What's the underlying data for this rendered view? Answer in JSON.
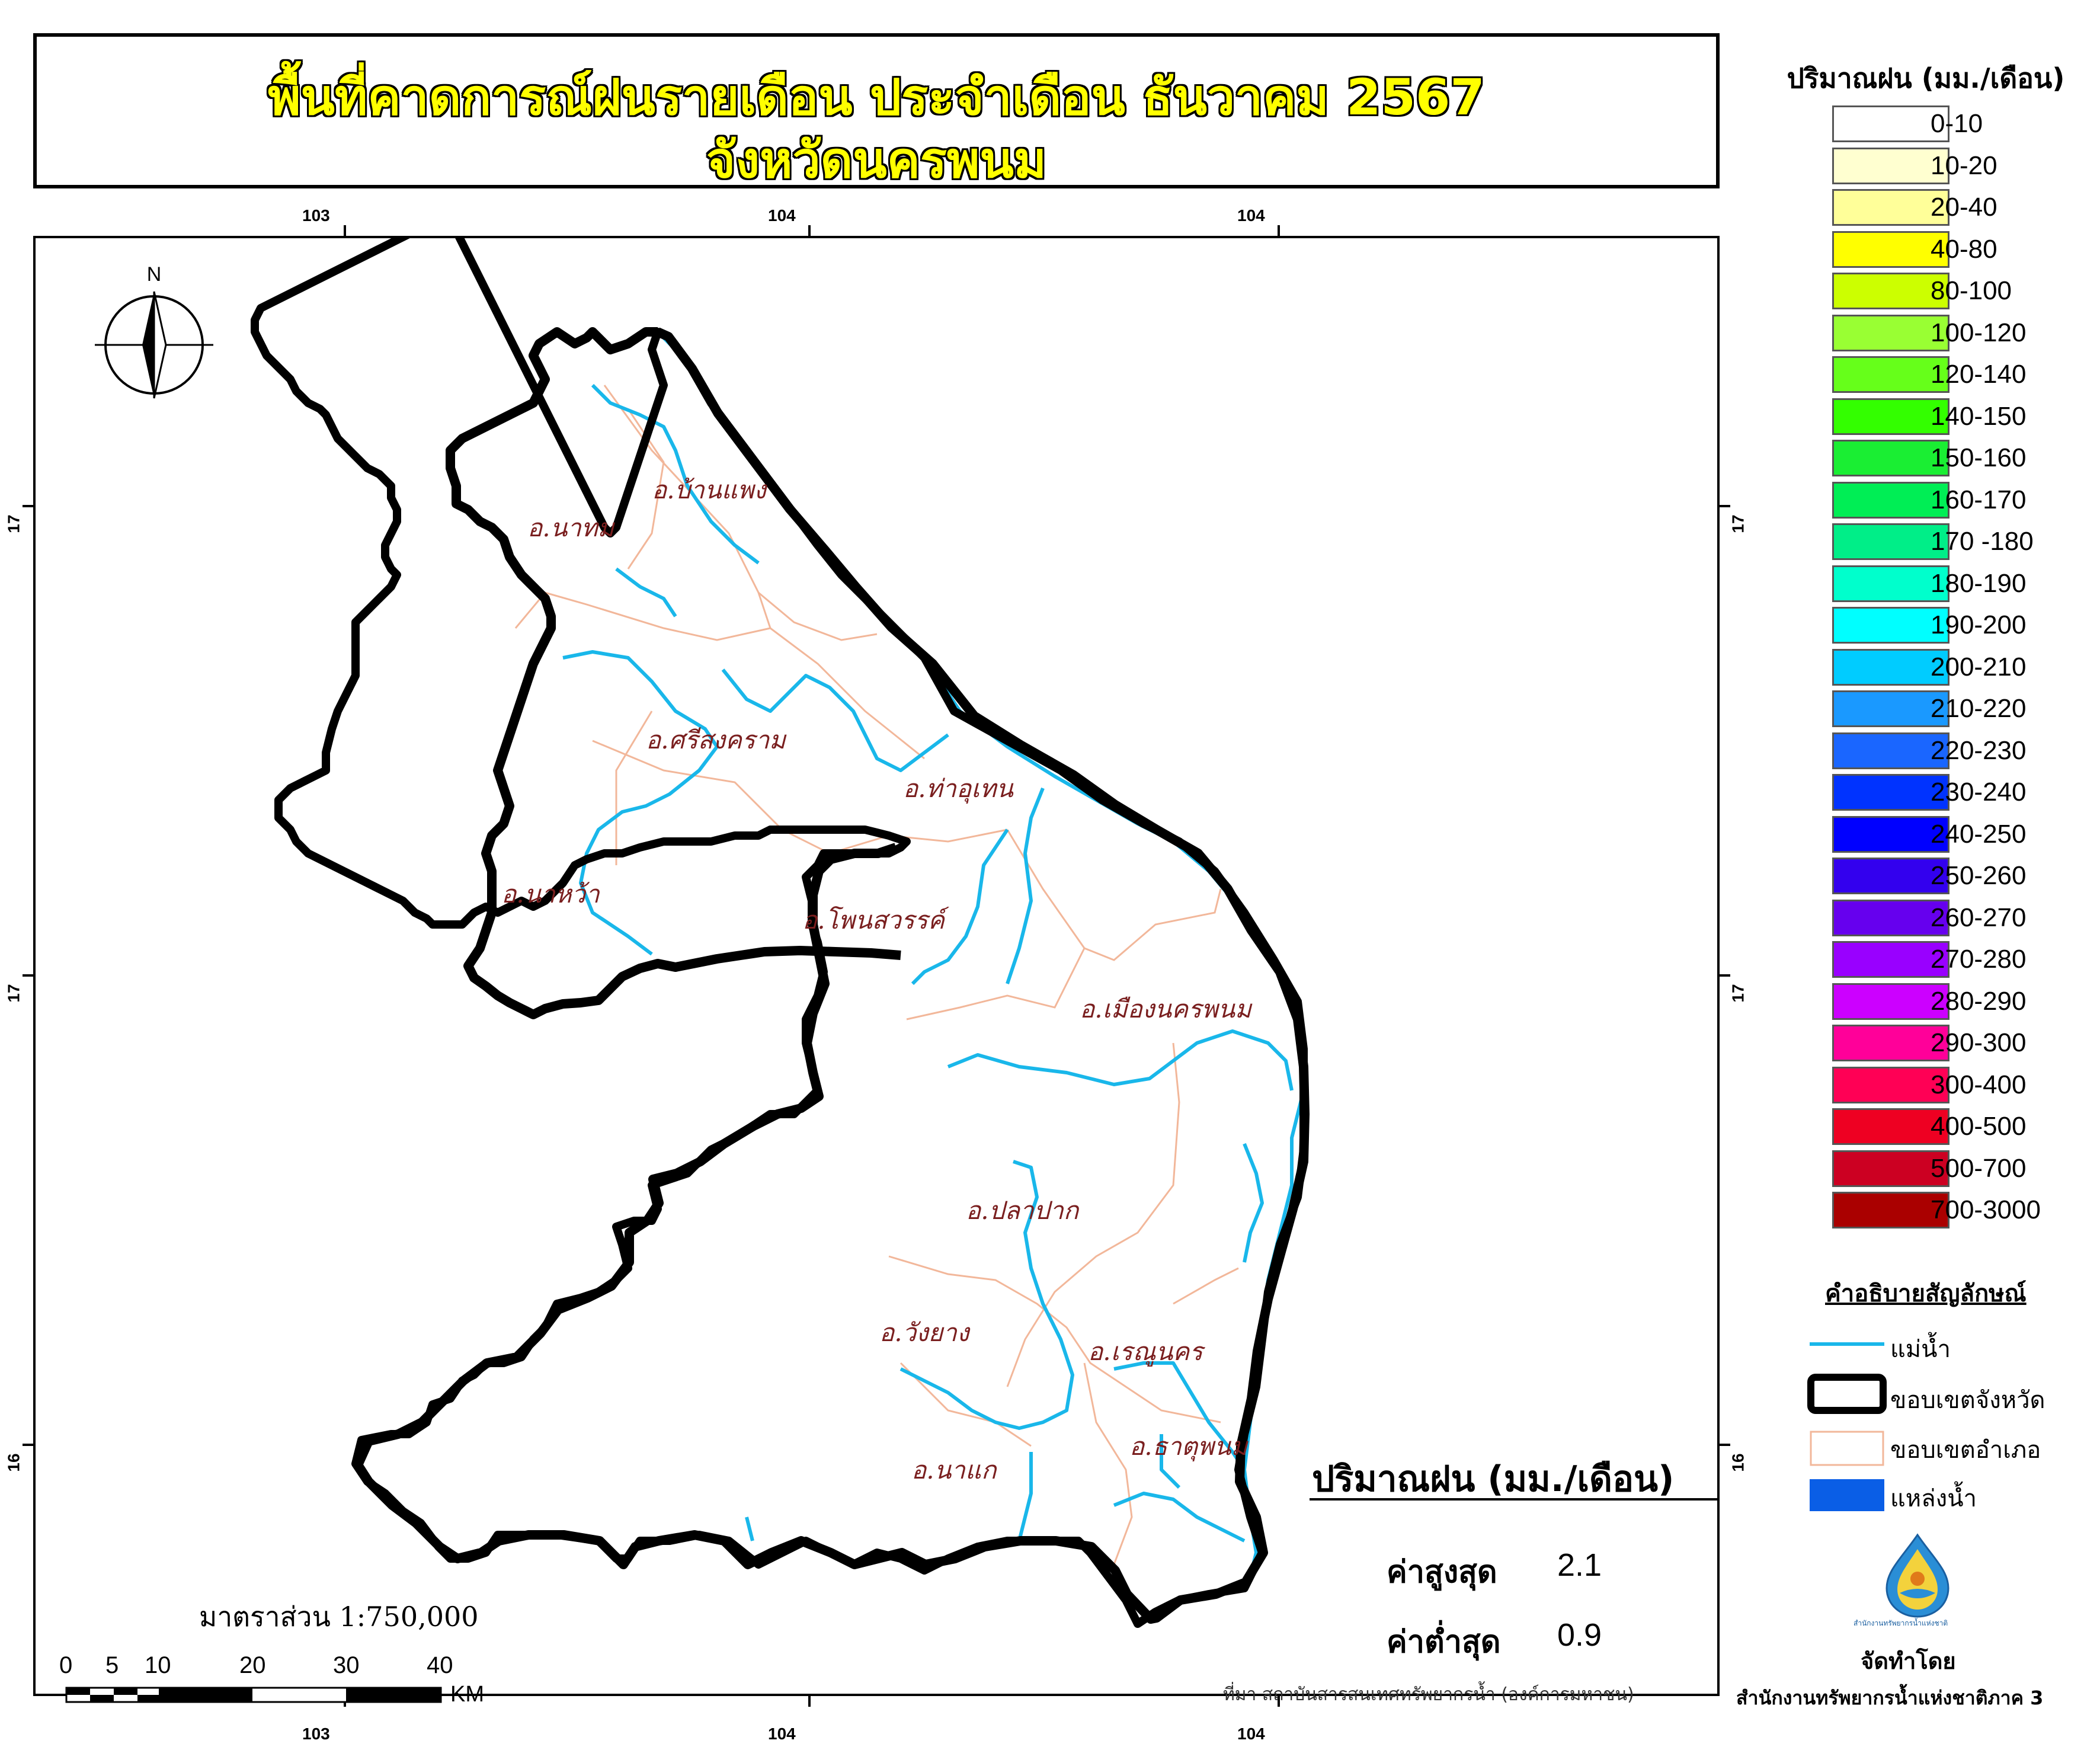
{
  "title": {
    "line1": "พื้นที่คาดการณ์ฝนรายเดือน ประจำเดือน ธันวาคม 2567",
    "line2": "จังหวัดนครพนม"
  },
  "grid_labels": {
    "top": [
      "103",
      "104",
      "104"
    ],
    "bottom": [
      "103",
      "104",
      "104"
    ],
    "left": [
      "17",
      "17",
      "16"
    ],
    "right": [
      "17",
      "17",
      "16"
    ]
  },
  "north_arrow": {
    "label": "N"
  },
  "districts": [
    {
      "id": "ban-phaeng",
      "name": "อ.บ้านแพง"
    },
    {
      "id": "na-thom",
      "name": "อ.นาทม"
    },
    {
      "id": "si-songkhram",
      "name": "อ.ศรีสงคราม"
    },
    {
      "id": "tha-uthen",
      "name": "อ.ท่าอุเทน"
    },
    {
      "id": "na-wa",
      "name": "อ.นาหว้า"
    },
    {
      "id": "phon-sawan",
      "name": "อ.โพนสวรรค์"
    },
    {
      "id": "mueang",
      "name": "อ.เมืองนครพนม"
    },
    {
      "id": "pla-pak",
      "name": "อ.ปลาปาก"
    },
    {
      "id": "wang-yang",
      "name": "อ.วังยาง"
    },
    {
      "id": "renu-nakhon",
      "name": "อ.เรณูนคร"
    },
    {
      "id": "that-phanom",
      "name": "อ.ธาตุพนม"
    },
    {
      "id": "na-kae",
      "name": "อ.นาแก"
    }
  ],
  "legend": {
    "title": "ปริมาณฝน (มม./เดือน)",
    "classes": [
      {
        "label": "0-10",
        "color": "#ffffff"
      },
      {
        "label": "10-20",
        "color": "#ffffd0"
      },
      {
        "label": "20-40",
        "color": "#ffff99"
      },
      {
        "label": "40-80",
        "color": "#ffff00"
      },
      {
        "label": "80-100",
        "color": "#ccff00"
      },
      {
        "label": "100-120",
        "color": "#99ff33"
      },
      {
        "label": "120-140",
        "color": "#66ff1a"
      },
      {
        "label": "140-150",
        "color": "#33ff00"
      },
      {
        "label": "150-160",
        "color": "#1aee33"
      },
      {
        "label": "160-170",
        "color": "#00ee55"
      },
      {
        "label": "170 -180",
        "color": "#00ee88"
      },
      {
        "label": "180-190",
        "color": "#00ffcc"
      },
      {
        "label": "190-200",
        "color": "#00ffff"
      },
      {
        "label": "200-210",
        "color": "#00ccff"
      },
      {
        "label": "210-220",
        "color": "#1a99ff"
      },
      {
        "label": "220-230",
        "color": "#1a66ff"
      },
      {
        "label": "230-240",
        "color": "#0033ff"
      },
      {
        "label": "240-250",
        "color": "#0000ff"
      },
      {
        "label": "250-260",
        "color": "#3300ee"
      },
      {
        "label": "260-270",
        "color": "#6600ee"
      },
      {
        "label": "270-280",
        "color": "#9900ff"
      },
      {
        "label": "280-290",
        "color": "#cc00ff"
      },
      {
        "label": "290-300",
        "color": "#ff0099"
      },
      {
        "label": "300-400",
        "color": "#ff0055"
      },
      {
        "label": "400-500",
        "color": "#ee0022"
      },
      {
        "label": "500-700",
        "color": "#cc0022"
      },
      {
        "label": "700-3000",
        "color": "#aa0000"
      }
    ]
  },
  "symbols": {
    "title": "คำอธิบายสัญลักษณ์",
    "river": "แม่น้ำ",
    "province_boundary": "ขอบเขตจังหวัด",
    "district_boundary": "ขอบเขตอำเภอ",
    "water_body": "แหล่งน้ำ",
    "colors": {
      "river": "#19b7ea",
      "province": "#000000",
      "district": "#f2b79a",
      "water": "#0a5ee6"
    }
  },
  "stats": {
    "title": "ปริมาณฝน (มม./เดือน)",
    "max_label": "ค่าสูงสุด",
    "max_value": "2.1",
    "min_label": "ค่าต่ำสุด",
    "min_value": "0.9"
  },
  "scale": {
    "text": "มาตราส่วน 1:750,000",
    "ticks": [
      "0",
      "5",
      "10",
      "20",
      "30",
      "40"
    ],
    "unit": "KM"
  },
  "credit": {
    "made_by": "จัดทำโดย",
    "organization": "สำนักงานทรัพยากรน้ำแห่งชาติภาค 3",
    "logo_text": "สำนักงานทรัพยากรน้ำแห่งชาติ"
  },
  "source": "ที่มา  สถาบันสารสนเทศทรัพยากรน้ำ (องค์การมหาชน)"
}
